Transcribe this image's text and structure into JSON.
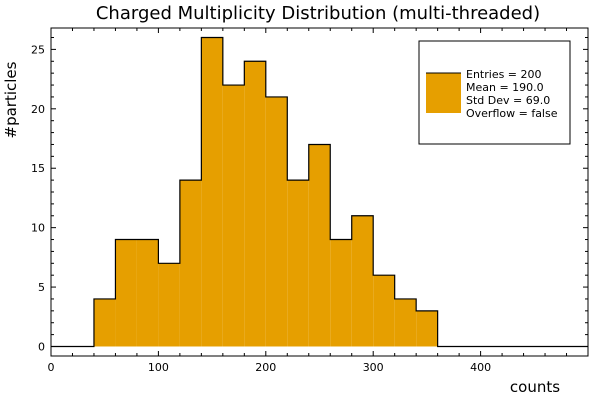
{
  "chart_data": {
    "type": "bar",
    "histogram": true,
    "title": "Charged Multiplicity Distribution (multi-threaded)",
    "xlabel": "counts",
    "ylabel": "#particles",
    "xlim": [
      0,
      500
    ],
    "ylim": [
      -0.8,
      26.8
    ],
    "bin_width": 20,
    "bin_edges": [
      0,
      20,
      40,
      60,
      80,
      100,
      120,
      140,
      160,
      180,
      200,
      220,
      240,
      260,
      280,
      300,
      320,
      340,
      360,
      380,
      400,
      420,
      440,
      460,
      480,
      500
    ],
    "values": [
      0,
      0,
      4,
      9,
      9,
      7,
      14,
      26,
      22,
      24,
      21,
      14,
      17,
      9,
      11,
      6,
      4,
      3,
      0,
      0,
      0,
      0,
      0,
      0,
      0
    ],
    "x_ticks": [
      0,
      100,
      200,
      300,
      400
    ],
    "x_tick_labels": [
      "0",
      "100",
      "200",
      "300",
      "400"
    ],
    "y_ticks": [
      0,
      5,
      10,
      15,
      20,
      25
    ],
    "y_tick_labels": [
      "0",
      "5",
      "10",
      "15",
      "20",
      "25"
    ],
    "grid": false,
    "legend_position": "top-right",
    "legend": [
      "Entries = 200",
      "Mean = 190.0",
      "Std Dev = 69.0",
      "Overflow = false"
    ],
    "fill_color": "#e69f00",
    "line_color": "#000000"
  }
}
